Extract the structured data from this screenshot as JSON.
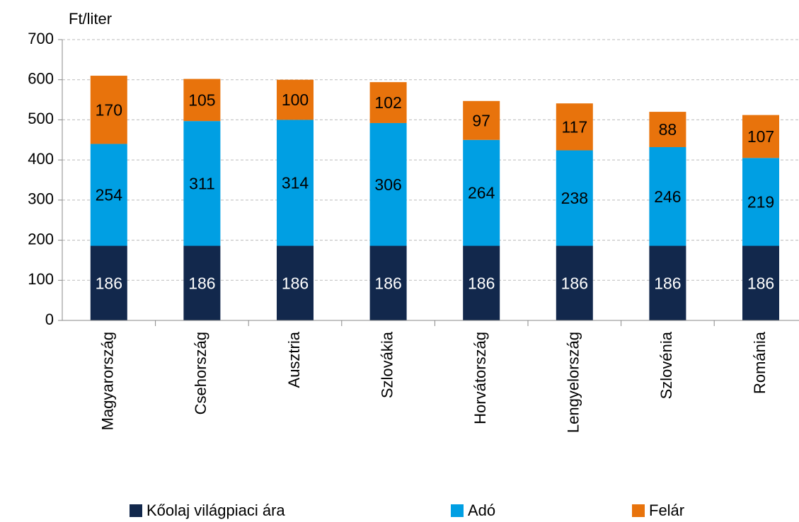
{
  "chart_data": {
    "type": "stacked_bar",
    "y_axis_label": "Ft/liter",
    "categories": [
      "Magyarország",
      "Csehország",
      "Ausztria",
      "Szlovákia",
      "Horvátország",
      "Lengyelország",
      "Szlovénia",
      "Románia"
    ],
    "series": [
      {
        "name": "Kőolaj világpiaci ára",
        "color": "#12284c",
        "label_color": "#ffffff",
        "values": [
          186,
          186,
          186,
          186,
          186,
          186,
          186,
          186
        ]
      },
      {
        "name": "Adó",
        "color": "#009fe3",
        "label_color": "#000000",
        "values": [
          254,
          311,
          314,
          306,
          264,
          238,
          246,
          219
        ]
      },
      {
        "name": "Felár",
        "color": "#e8730c",
        "label_color": "#000000",
        "values": [
          170,
          105,
          100,
          102,
          97,
          117,
          88,
          107
        ]
      }
    ],
    "ylim": [
      0,
      700
    ],
    "yticks": [
      0,
      100,
      200,
      300,
      400,
      500,
      600,
      700
    ],
    "grid": true
  }
}
